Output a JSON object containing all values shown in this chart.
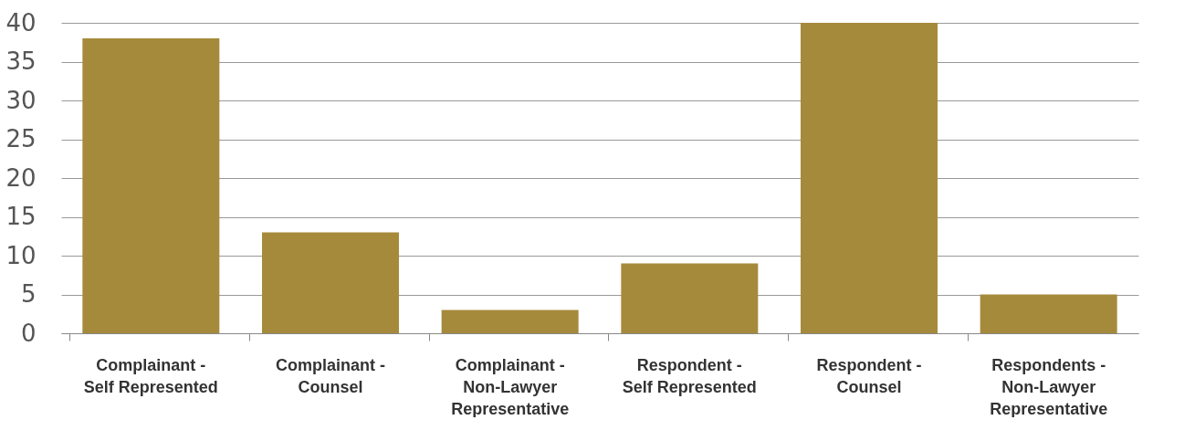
{
  "chart_data": {
    "type": "bar",
    "categories": [
      "Complainant -\nSelf Represented",
      "Complainant -\nCounsel",
      "Complainant -\nNon-Lawyer\nRepresentative",
      "Respondent -\nSelf Represented",
      "Respondent -\nCounsel",
      "Respondents -\nNon-Lawyer\nRepresentative"
    ],
    "values": [
      38,
      13,
      3,
      9,
      40,
      5
    ],
    "color": "#a68a3b",
    "ylim": [
      0,
      40
    ],
    "yticks": [
      0,
      5,
      10,
      15,
      20,
      25,
      30,
      35,
      40
    ],
    "grid": "y"
  }
}
